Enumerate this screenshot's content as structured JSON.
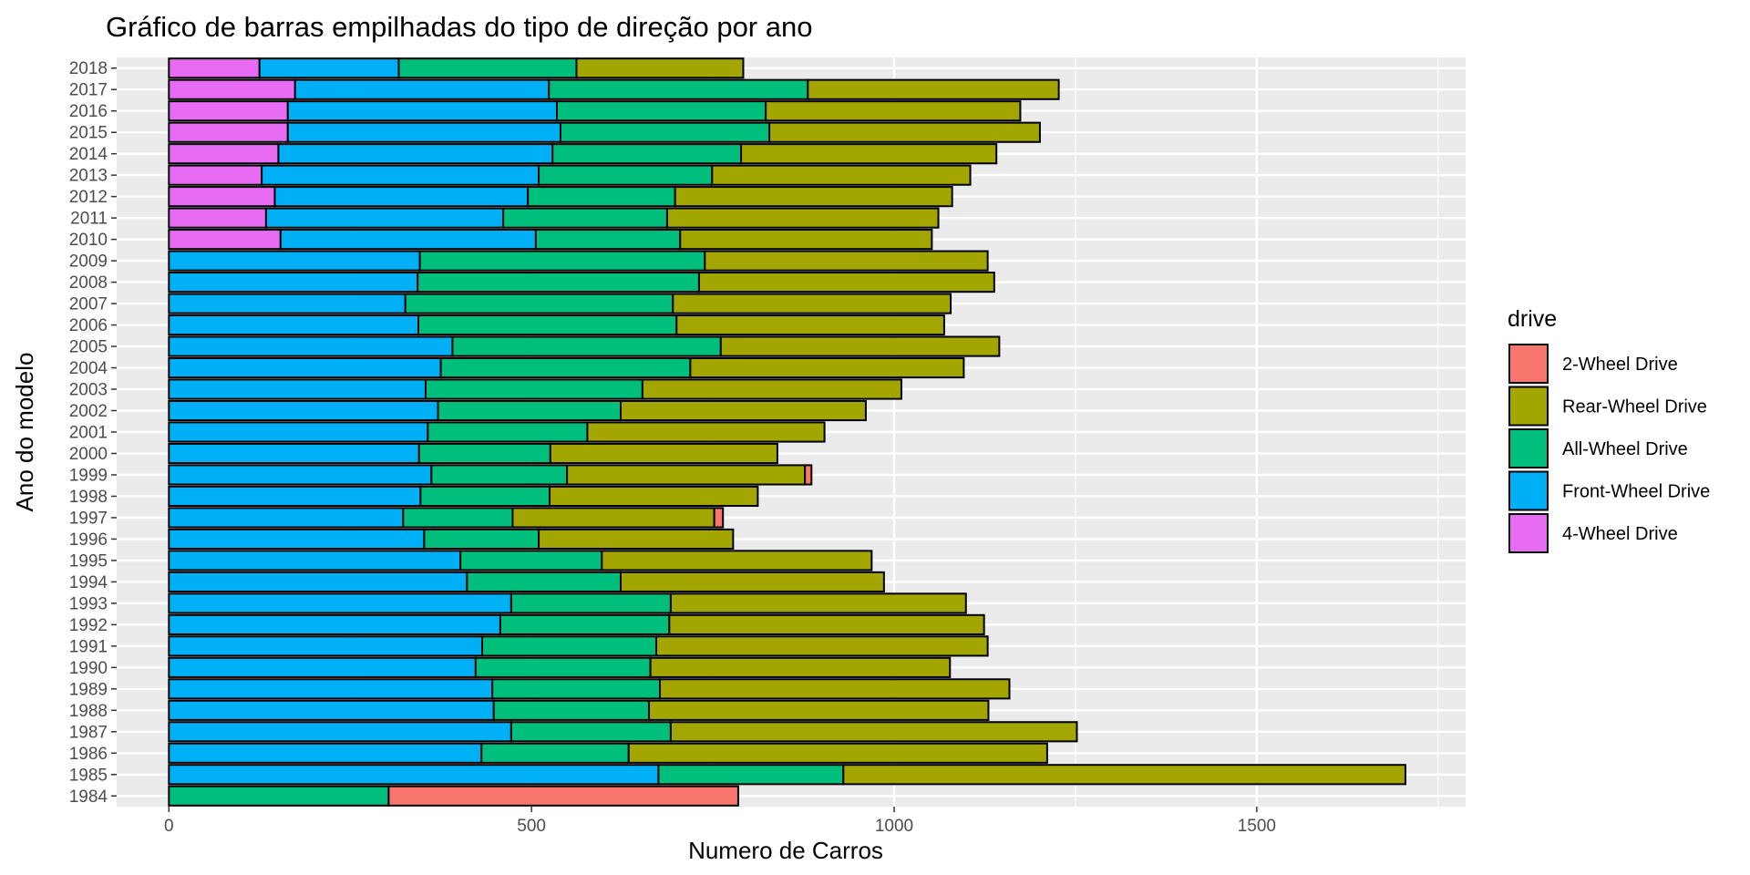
{
  "chart_data": {
    "type": "bar",
    "orientation": "horizontal",
    "stacked": true,
    "title": "Gráfico de barras empilhadas do tipo de direção por ano",
    "xlabel": "Numero de Carros",
    "ylabel": "Ano do modelo",
    "xlim": [
      -72,
      1788
    ],
    "x_ticks": [
      0,
      500,
      1000,
      1500
    ],
    "grid": true,
    "legend_position": "right",
    "legend": {
      "title": "drive",
      "items": [
        {
          "label": "2-Wheel Drive",
          "color": "#F8766D"
        },
        {
          "label": "Rear-Wheel Drive",
          "color": "#A3A500"
        },
        {
          "label": "All-Wheel Drive",
          "color": "#00BF7D"
        },
        {
          "label": "Front-Wheel Drive",
          "color": "#00B0F6"
        },
        {
          "label": "4-Wheel Drive",
          "color": "#E76BF3"
        }
      ]
    },
    "stack_order": [
      "4-Wheel Drive",
      "Front-Wheel Drive",
      "All-Wheel Drive",
      "Rear-Wheel Drive",
      "2-Wheel Drive"
    ],
    "categories": [
      "1984",
      "1985",
      "1986",
      "1987",
      "1988",
      "1989",
      "1990",
      "1991",
      "1992",
      "1993",
      "1994",
      "1995",
      "1996",
      "1997",
      "1998",
      "1999",
      "2000",
      "2001",
      "2002",
      "2003",
      "2004",
      "2005",
      "2006",
      "2007",
      "2008",
      "2009",
      "2010",
      "2011",
      "2012",
      "2013",
      "2014",
      "2015",
      "2016",
      "2017",
      "2018"
    ],
    "series": [
      {
        "name": "4-Wheel Drive",
        "color": "#E76BF3",
        "values": [
          0,
          0,
          0,
          0,
          0,
          0,
          0,
          0,
          0,
          0,
          0,
          0,
          0,
          0,
          0,
          0,
          0,
          0,
          0,
          0,
          0,
          0,
          0,
          0,
          0,
          0,
          154,
          134,
          146,
          128,
          151,
          164,
          164,
          174,
          125
        ]
      },
      {
        "name": "Front-Wheel Drive",
        "color": "#00B0F6",
        "values": [
          0,
          675,
          431,
          472,
          448,
          446,
          423,
          432,
          457,
          472,
          411,
          402,
          352,
          323,
          347,
          362,
          345,
          357,
          371,
          354,
          375,
          391,
          344,
          326,
          343,
          346,
          352,
          327,
          349,
          382,
          378,
          376,
          371,
          350,
          192
        ]
      },
      {
        "name": "All-Wheel Drive",
        "color": "#00BF7D",
        "values": [
          303,
          255,
          203,
          220,
          214,
          231,
          241,
          240,
          233,
          220,
          212,
          195,
          158,
          151,
          178,
          187,
          181,
          220,
          252,
          299,
          344,
          370,
          356,
          369,
          388,
          393,
          199,
          226,
          203,
          239,
          260,
          288,
          288,
          357,
          245
        ]
      },
      {
        "name": "Rear-Wheel Drive",
        "color": "#A3A500",
        "values": [
          0,
          775,
          577,
          560,
          468,
          482,
          413,
          457,
          434,
          407,
          363,
          372,
          268,
          278,
          287,
          328,
          313,
          327,
          338,
          357,
          377,
          384,
          369,
          383,
          407,
          390,
          347,
          374,
          382,
          356,
          352,
          373,
          351,
          346,
          230
        ]
      },
      {
        "name": "2-Wheel Drive",
        "color": "#F8766D",
        "values": [
          482,
          0,
          0,
          0,
          0,
          0,
          0,
          0,
          0,
          0,
          0,
          0,
          0,
          12,
          0,
          9,
          0,
          0,
          0,
          0,
          0,
          0,
          0,
          0,
          0,
          0,
          0,
          0,
          0,
          0,
          0,
          0,
          0,
          0,
          0
        ]
      }
    ]
  }
}
